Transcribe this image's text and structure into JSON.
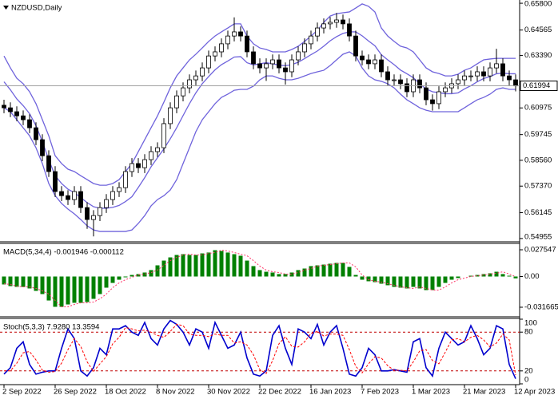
{
  "chart_data": [
    {
      "type": "candlestick",
      "title": "NZDUSD,Daily",
      "candle_color": "#000000",
      "band_color": "#6f63dc",
      "ylim": [
        0.5484,
        0.6595
      ],
      "yticks": [
        {
          "value": 0.658,
          "label": "0.65800"
        },
        0.64565,
        {
          "value": 0.6339,
          "label": "0.63390"
        },
        0.60975,
        0.59745,
        {
          "value": 0.5856,
          "label": "0.58560"
        },
        {
          "value": 0.5737,
          "label": "0.57370"
        },
        0.56145,
        0.54955
      ],
      "current_price": 0.61994,
      "open": [
        0.611,
        0.6098,
        0.608,
        0.6061,
        0.6043,
        0.6006,
        0.5951,
        0.5877,
        0.5804,
        0.5712,
        0.5693,
        0.5675,
        0.5712,
        0.5638,
        0.5583,
        0.5601,
        0.5638,
        0.5675,
        0.5712,
        0.573,
        0.5804,
        0.5841,
        0.5822,
        0.5859,
        0.5896,
        0.5914,
        0.6025,
        0.6098,
        0.6153,
        0.619,
        0.6227,
        0.6245,
        0.6282,
        0.6337,
        0.6356,
        0.6393,
        0.6429,
        0.6448,
        0.6429,
        0.6356,
        0.6301,
        0.6282,
        0.6301,
        0.6319,
        0.6282,
        0.6264,
        0.6319,
        0.6356,
        0.6393,
        0.6429,
        0.6466,
        0.6485,
        0.6492,
        0.6503,
        0.6485,
        0.6429,
        0.6337,
        0.6319,
        0.6301,
        0.6319,
        0.6264,
        0.6227,
        0.6227,
        0.6209,
        0.6172,
        0.6227,
        0.619,
        0.6135,
        0.6117,
        0.6172,
        0.619,
        0.6209,
        0.6227,
        0.6245,
        0.6245,
        0.6264,
        0.6245,
        0.6282,
        0.6301,
        0.6245,
        0.6227
      ],
      "high": [
        0.6135,
        0.6123,
        0.6105,
        0.6086,
        0.6068,
        0.6031,
        0.5976,
        0.5902,
        0.5829,
        0.5737,
        0.5718,
        0.5737,
        0.5737,
        0.5663,
        0.5626,
        0.5663,
        0.57,
        0.5737,
        0.5755,
        0.5829,
        0.5866,
        0.5866,
        0.5884,
        0.5921,
        0.5939,
        0.605,
        0.6123,
        0.6178,
        0.6215,
        0.6252,
        0.627,
        0.6307,
        0.6362,
        0.6381,
        0.6418,
        0.6454,
        0.6515,
        0.6473,
        0.6454,
        0.6381,
        0.6326,
        0.6326,
        0.6344,
        0.6344,
        0.6307,
        0.6344,
        0.6381,
        0.6418,
        0.6454,
        0.6491,
        0.651,
        0.6517,
        0.6535,
        0.6528,
        0.651,
        0.6454,
        0.6362,
        0.6344,
        0.6344,
        0.6344,
        0.6289,
        0.6252,
        0.6252,
        0.6234,
        0.6252,
        0.6252,
        0.6215,
        0.616,
        0.6197,
        0.6215,
        0.6234,
        0.6252,
        0.627,
        0.627,
        0.6289,
        0.6289,
        0.6307,
        0.637,
        0.6326,
        0.627,
        0.6252
      ],
      "low": [
        0.6073,
        0.6055,
        0.6036,
        0.6018,
        0.5981,
        0.5926,
        0.5852,
        0.5779,
        0.5687,
        0.5668,
        0.565,
        0.565,
        0.5613,
        0.554,
        0.5505,
        0.5576,
        0.5613,
        0.565,
        0.5687,
        0.5705,
        0.5779,
        0.5797,
        0.5797,
        0.5834,
        0.5871,
        0.5889,
        0.6,
        0.6073,
        0.6128,
        0.6165,
        0.6202,
        0.622,
        0.6257,
        0.6312,
        0.6331,
        0.6368,
        0.6404,
        0.6404,
        0.6331,
        0.6276,
        0.6257,
        0.6222,
        0.6276,
        0.6257,
        0.6205,
        0.6239,
        0.6294,
        0.6331,
        0.6368,
        0.6404,
        0.6441,
        0.646,
        0.6467,
        0.646,
        0.6404,
        0.6312,
        0.6294,
        0.6276,
        0.6276,
        0.6239,
        0.6202,
        0.6202,
        0.6184,
        0.6147,
        0.6147,
        0.6165,
        0.611,
        0.6085,
        0.6092,
        0.6147,
        0.6165,
        0.6184,
        0.6202,
        0.622,
        0.622,
        0.622,
        0.622,
        0.6257,
        0.622,
        0.6202,
        0.6174
      ],
      "close": [
        0.6098,
        0.608,
        0.6061,
        0.6043,
        0.6006,
        0.5951,
        0.5877,
        0.5804,
        0.5712,
        0.5693,
        0.5675,
        0.5712,
        0.5638,
        0.5583,
        0.5601,
        0.5638,
        0.5675,
        0.5712,
        0.573,
        0.5804,
        0.5841,
        0.5822,
        0.5859,
        0.5896,
        0.5914,
        0.6025,
        0.6098,
        0.6153,
        0.619,
        0.6227,
        0.6245,
        0.6282,
        0.6337,
        0.6356,
        0.6393,
        0.6429,
        0.6448,
        0.6429,
        0.6356,
        0.6301,
        0.6282,
        0.6301,
        0.6319,
        0.6282,
        0.6264,
        0.6319,
        0.6356,
        0.6393,
        0.6429,
        0.6466,
        0.6485,
        0.6492,
        0.6503,
        0.6485,
        0.6429,
        0.6337,
        0.6319,
        0.6301,
        0.6319,
        0.6264,
        0.6227,
        0.6227,
        0.6209,
        0.6172,
        0.6227,
        0.619,
        0.6135,
        0.6117,
        0.6172,
        0.619,
        0.6209,
        0.6227,
        0.6245,
        0.6245,
        0.6264,
        0.6245,
        0.6282,
        0.6301,
        0.6245,
        0.6227,
        0.6199
      ],
      "bands": {
        "upper": [
          0.6337,
          0.6282,
          0.6234,
          0.6209,
          0.6172,
          0.6117,
          0.6043,
          0.5969,
          0.5877,
          0.5841,
          0.5815,
          0.5804,
          0.5785,
          0.5767,
          0.5749,
          0.5741,
          0.5741,
          0.5749,
          0.5767,
          0.5804,
          0.5841,
          0.5896,
          0.5951,
          0.6006,
          0.6061,
          0.6124,
          0.619,
          0.6245,
          0.6282,
          0.6319,
          0.6345,
          0.6374,
          0.6404,
          0.6429,
          0.6448,
          0.6466,
          0.6485,
          0.6485,
          0.6429,
          0.6393,
          0.6374,
          0.6367,
          0.6356,
          0.6356,
          0.6356,
          0.6367,
          0.6382,
          0.6404,
          0.6429,
          0.6455,
          0.6492,
          0.6521,
          0.6532,
          0.6536,
          0.654,
          0.6558,
          0.6577,
          0.6566,
          0.654,
          0.6466,
          0.6429,
          0.6404,
          0.6382,
          0.6374,
          0.6356,
          0.6319,
          0.6282,
          0.6264,
          0.6256,
          0.6245,
          0.6245,
          0.6253,
          0.6271,
          0.6282,
          0.6301,
          0.6319,
          0.6323,
          0.6326,
          0.6326,
          0.6326,
          0.6326
        ],
        "middle": [
          0.6218,
          0.6181,
          0.6139,
          0.6108,
          0.6071,
          0.6016,
          0.5942,
          0.5859,
          0.5785,
          0.5749,
          0.5723,
          0.5707,
          0.5684,
          0.5661,
          0.5642,
          0.5635,
          0.5635,
          0.5639,
          0.5648,
          0.5666,
          0.5688,
          0.5731,
          0.5776,
          0.5826,
          0.5868,
          0.5909,
          0.5955,
          0.6006,
          0.6062,
          0.6117,
          0.6167,
          0.6209,
          0.6242,
          0.6273,
          0.6297,
          0.6314,
          0.6332,
          0.6334,
          0.6306,
          0.6296,
          0.6301,
          0.6306,
          0.6301,
          0.6295,
          0.6292,
          0.6297,
          0.6308,
          0.6325,
          0.6343,
          0.636,
          0.6382,
          0.6407,
          0.6426,
          0.6441,
          0.6448,
          0.6448,
          0.643,
          0.6406,
          0.6384,
          0.6343,
          0.6319,
          0.6297,
          0.6272,
          0.6255,
          0.6237,
          0.6209,
          0.6185,
          0.6172,
          0.6168,
          0.6163,
          0.6163,
          0.6167,
          0.6185,
          0.62,
          0.6218,
          0.6233,
          0.6242,
          0.6255,
          0.6258,
          0.6255,
          0.6255
        ],
        "lower": [
          0.6098,
          0.608,
          0.6043,
          0.6006,
          0.5969,
          0.5914,
          0.5841,
          0.5749,
          0.5693,
          0.5657,
          0.5631,
          0.5609,
          0.5583,
          0.5554,
          0.5535,
          0.5528,
          0.5528,
          0.5528,
          0.5528,
          0.5528,
          0.5535,
          0.5565,
          0.5601,
          0.5646,
          0.5675,
          0.5693,
          0.5719,
          0.5767,
          0.5841,
          0.5914,
          0.5988,
          0.6043,
          0.608,
          0.6117,
          0.6146,
          0.6161,
          0.6179,
          0.6183,
          0.6183,
          0.6198,
          0.6227,
          0.6245,
          0.6245,
          0.6234,
          0.6227,
          0.6227,
          0.6234,
          0.6245,
          0.6256,
          0.6264,
          0.6271,
          0.6293,
          0.6319,
          0.6345,
          0.6356,
          0.6337,
          0.6282,
          0.6245,
          0.6227,
          0.622,
          0.6209,
          0.619,
          0.6161,
          0.6135,
          0.6117,
          0.6098,
          0.6087,
          0.608,
          0.608,
          0.608,
          0.608,
          0.608,
          0.6098,
          0.6117,
          0.6135,
          0.6146,
          0.6161,
          0.6183,
          0.619,
          0.6183,
          0.6183
        ]
      }
    },
    {
      "type": "bar",
      "title": "MACD(5,34,4) -0.001946 -0.000112",
      "color": "#008000",
      "signal_color": "#ff3366",
      "ylim": [
        -0.0407,
        0.0333
      ],
      "yticks": [
        0.027547,
        {
          "value": 0,
          "label": "0.00"
        },
        -0.031665
      ],
      "values": [
        -0.0082,
        -0.0099,
        -0.0107,
        -0.0107,
        -0.0123,
        -0.0148,
        -0.0181,
        -0.0247,
        -0.0312,
        -0.0312,
        -0.0288,
        -0.0271,
        -0.0271,
        -0.0263,
        -0.023,
        -0.0181,
        -0.0115,
        -0.0066,
        -0.0033,
        -0.0008,
        0.0016,
        0.0025,
        0.0041,
        0.0066,
        0.0115,
        0.0164,
        0.0197,
        0.0222,
        0.023,
        0.0222,
        0.0222,
        0.0238,
        0.0247,
        0.0271,
        0.0263,
        0.0247,
        0.023,
        0.0214,
        0.0164,
        0.0107,
        0.0066,
        0.0049,
        0.0041,
        0.0025,
        0.0025,
        0.0041,
        0.0066,
        0.0082,
        0.0107,
        0.0115,
        0.0123,
        0.0132,
        0.014,
        0.014,
        0.0099,
        0.0016,
        -0.0033,
        -0.0049,
        -0.0058,
        -0.0074,
        -0.009,
        -0.0107,
        -0.0115,
        -0.0123,
        -0.0107,
        -0.0123,
        -0.014,
        -0.014,
        -0.0107,
        -0.0066,
        -0.0033,
        -0.0016,
        0,
        0.0008,
        0.0016,
        0.0025,
        0.0033,
        0.0049,
        0.0025,
        0.0008,
        -0.0019
      ],
      "signal": [
        -0.0075,
        -0.0082,
        -0.0099,
        -0.0107,
        -0.0107,
        -0.0123,
        -0.0148,
        -0.0181,
        -0.0247,
        -0.0312,
        -0.0312,
        -0.0288,
        -0.0271,
        -0.0271,
        -0.0263,
        -0.023,
        -0.0181,
        -0.0115,
        -0.0066,
        -0.0033,
        -0.0008,
        0.0016,
        0.0025,
        0.0041,
        0.0066,
        0.0115,
        0.0164,
        0.0197,
        0.0222,
        0.023,
        0.0222,
        0.0222,
        0.0238,
        0.0247,
        0.0271,
        0.0263,
        0.0247,
        0.023,
        0.0214,
        0.0164,
        0.0107,
        0.0066,
        0.0049,
        0.0041,
        0.0025,
        0.0025,
        0.0041,
        0.0066,
        0.0082,
        0.0107,
        0.0115,
        0.0123,
        0.0132,
        0.014,
        0.014,
        0.0099,
        0.0016,
        -0.0033,
        -0.0049,
        -0.0058,
        -0.0074,
        -0.009,
        -0.0107,
        -0.0115,
        -0.0123,
        -0.0107,
        -0.0123,
        -0.014,
        -0.014,
        -0.0107,
        -0.0066,
        -0.0033,
        -0.0016,
        0,
        0.0008,
        0.0016,
        0.0025,
        0.0033,
        0.0049,
        0.0025,
        -0.0001
      ]
    },
    {
      "type": "line",
      "title": "Stoch(5,3,3) 7.9280 13.3594",
      "ylim": [
        0,
        100
      ],
      "yticks": [
        100,
        80,
        20,
        0
      ],
      "levels": [
        80,
        20
      ],
      "level_color": "#c00000",
      "categories": [
        "2 Sep 2022",
        null,
        null,
        null,
        null,
        null,
        null,
        null,
        "26 Sep 2022",
        null,
        null,
        null,
        null,
        null,
        null,
        null,
        "18 Oct 2022",
        null,
        null,
        null,
        null,
        null,
        null,
        null,
        "8 Nov 2022",
        null,
        null,
        null,
        null,
        null,
        null,
        null,
        "30 Nov 2022",
        null,
        null,
        null,
        null,
        null,
        null,
        null,
        "22 Dec 2022",
        null,
        null,
        null,
        null,
        null,
        null,
        null,
        "16 Jan 2023",
        null,
        null,
        null,
        null,
        null,
        null,
        null,
        "7 Feb 2023",
        null,
        null,
        null,
        null,
        null,
        null,
        null,
        "1 Mar 2023",
        null,
        null,
        null,
        null,
        null,
        null,
        null,
        "21 Mar 2023",
        null,
        null,
        null,
        null,
        null,
        null,
        null,
        "12 Apr 2023"
      ],
      "series": [
        {
          "color": "#0000cd",
          "values": [
            15,
            25,
            55,
            65,
            30,
            15,
            18,
            20,
            20,
            55,
            85,
            70,
            20,
            12,
            25,
            55,
            45,
            85,
            85,
            90,
            80,
            75,
            95,
            70,
            60,
            85,
            98,
            92,
            80,
            60,
            85,
            80,
            55,
            95,
            75,
            55,
            60,
            80,
            40,
            15,
            12,
            20,
            75,
            90,
            55,
            30,
            85,
            80,
            70,
            92,
            60,
            80,
            90,
            55,
            15,
            12,
            25,
            55,
            45,
            20,
            20,
            22,
            20,
            18,
            65,
            70,
            25,
            12,
            55,
            80,
            70,
            60,
            65,
            90,
            70,
            45,
            55,
            90,
            85,
            30,
            7.9
          ]
        },
        {
          "color": "#ff0000",
          "values": [
            20,
            20,
            32,
            48,
            50,
            37,
            21,
            18,
            19,
            32,
            53,
            70,
            58,
            34,
            19,
            31,
            42,
            62,
            72,
            87,
            85,
            82,
            83,
            80,
            75,
            72,
            81,
            92,
            90,
            77,
            75,
            75,
            73,
            77,
            75,
            75,
            63,
            65,
            60,
            45,
            22,
            16,
            36,
            62,
            73,
            58,
            57,
            65,
            78,
            81,
            74,
            77,
            77,
            75,
            53,
            27,
            17,
            31,
            42,
            40,
            28,
            21,
            21,
            20,
            34,
            51,
            53,
            36,
            31,
            49,
            68,
            70,
            65,
            72,
            75,
            68,
            57,
            63,
            77,
            68,
            13.4
          ]
        }
      ]
    }
  ]
}
